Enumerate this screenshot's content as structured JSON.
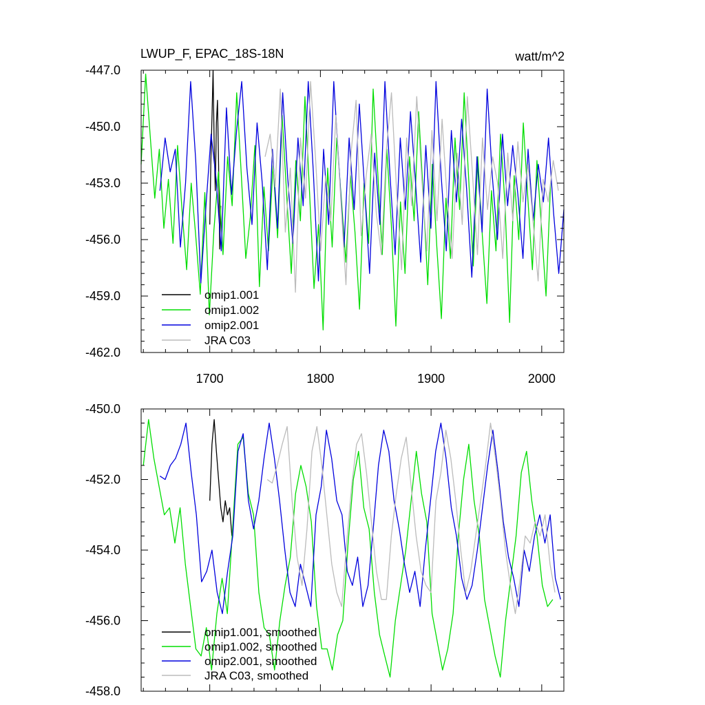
{
  "figure": {
    "title_left": "LWUP_F, EPAC_18S-18N",
    "title_right": "watt/m^2"
  },
  "colors": {
    "omip1_001": "#000000",
    "omip1_002": "#00dd00",
    "omip2_001": "#0000dd",
    "jra": "#bbbbbb",
    "frame": "#000000"
  },
  "chart_data": [
    {
      "type": "line",
      "panel": "top",
      "xlim": [
        1638,
        2020
      ],
      "ylim": [
        -462,
        -447
      ],
      "xticks": [
        1700,
        1800,
        1900,
        2000
      ],
      "x_tick_labels": [
        "1700",
        "1800",
        "1900",
        "2000"
      ],
      "yticks": [
        -462,
        -459,
        -456,
        -453,
        -450,
        -447
      ],
      "y_tick_labels": [
        "-462.0",
        "-459.0",
        "-456.0",
        "-453.0",
        "-450.0",
        "-447.0"
      ],
      "legend": [
        "omip1.001",
        "omip1.002",
        "omip2.001",
        "JRA C03"
      ],
      "series": [
        {
          "name": "omip1.001",
          "color_key": "omip1_001",
          "x_start": 1700,
          "x_end": 1710,
          "values": [
            -455.2,
            -451.8,
            -449.5,
            -447.0,
            -451.0,
            -453.4,
            -449.8,
            -448.6,
            -452.0,
            -456.5,
            -454.2
          ]
        },
        {
          "name": "omip1.002",
          "color_key": "omip1_002",
          "x_start": 1638,
          "x_end": 2008,
          "values": [
            -452.0,
            -447.2,
            -450.5,
            -453.8,
            -451.2,
            -455.4,
            -452.8,
            -456.2,
            -451.0,
            -454.5,
            -457.6,
            -453.0,
            -455.8,
            -458.9,
            -453.5,
            -460.0,
            -455.5,
            -452.4,
            -456.8,
            -451.6,
            -454.2,
            -448.2,
            -452.5,
            -457.0,
            -454.8,
            -451.0,
            -458.5,
            -453.2,
            -456.6,
            -452.0,
            -455.9,
            -449.4,
            -453.7,
            -457.8,
            -451.8,
            -455.0,
            -448.4,
            -453.4,
            -458.6,
            -455.2,
            -460.8,
            -452.2,
            -456.4,
            -450.6,
            -453.8,
            -457.2,
            -452.6,
            -455.6,
            -459.7,
            -453.0,
            -456.2,
            -448.0,
            -452.4,
            -456.8,
            -451.2,
            -455.2,
            -460.6,
            -454.0,
            -457.8,
            -451.6,
            -455.0,
            -449.2,
            -453.6,
            -458.4,
            -452.0,
            -456.4,
            -460.2,
            -453.8,
            -457.0,
            -450.6,
            -454.4,
            -448.2,
            -452.8,
            -457.4,
            -451.6,
            -455.8,
            -459.4,
            -453.4,
            -456.6,
            -450.4,
            -454.2,
            -460.4,
            -452.6,
            -456.0,
            -449.8,
            -453.8,
            -457.6,
            -451.8,
            -455.4,
            -459.0,
            -453.0
          ]
        },
        {
          "name": "omip2.001",
          "color_key": "omip2_001",
          "x_start": 1655,
          "x_end": 2020,
          "values": [
            -453.4,
            -450.6,
            -452.4,
            -451.2,
            -456.4,
            -453.0,
            -447.6,
            -451.8,
            -458.3,
            -454.2,
            -450.4,
            -452.8,
            -456.6,
            -449.0,
            -453.6,
            -450.2,
            -447.6,
            -452.2,
            -455.2,
            -449.8,
            -453.0,
            -457.6,
            -451.2,
            -455.4,
            -448.2,
            -452.8,
            -456.2,
            -450.6,
            -454.2,
            -447.6,
            -452.4,
            -458.2,
            -451.2,
            -455.2,
            -447.6,
            -452.0,
            -456.4,
            -450.6,
            -454.4,
            -448.8,
            -453.2,
            -457.8,
            -451.4,
            -455.2,
            -447.6,
            -452.6,
            -456.8,
            -450.6,
            -454.4,
            -449.2,
            -453.0,
            -457.2,
            -451.0,
            -455.4,
            -447.6,
            -452.6,
            -456.6,
            -450.2,
            -454.0,
            -449.6,
            -453.4,
            -458.0,
            -451.6,
            -455.6,
            -448.0,
            -452.6,
            -456.0,
            -450.4,
            -454.2,
            -451.0,
            -453.6,
            -457.0,
            -451.2,
            -455.0,
            -452.0,
            -454.0,
            -450.6,
            -454.6,
            -457.8,
            -454.4
          ]
        },
        {
          "name": "JRA C03",
          "color_key": "jra",
          "x_start": 1750,
          "x_end": 2015,
          "values": [
            -451.6,
            -450.4,
            -453.2,
            -448.0,
            -455.6,
            -452.2,
            -458.8,
            -450.6,
            -453.8,
            -447.6,
            -451.8,
            -456.6,
            -452.6,
            -455.0,
            -449.4,
            -454.0,
            -458.4,
            -451.4,
            -448.6,
            -455.8,
            -452.6,
            -450.4,
            -454.6,
            -456.8,
            -451.2,
            -448.2,
            -453.4,
            -457.6,
            -450.6,
            -454.2,
            -448.4,
            -452.8,
            -456.6,
            -450.2,
            -455.0,
            -449.6,
            -453.8,
            -457.0,
            -451.4,
            -455.2,
            -448.4,
            -452.4,
            -456.8,
            -450.6,
            -454.4,
            -451.6,
            -453.0,
            -457.0,
            -451.4,
            -455.0,
            -450.8,
            -454.0,
            -452.0,
            -455.0,
            -458.2,
            -452.8,
            -454.0,
            -451.8,
            -453.4
          ]
        }
      ]
    },
    {
      "type": "line",
      "panel": "bottom",
      "xlim": [
        1638,
        2020
      ],
      "ylim": [
        -458,
        -450
      ],
      "xticks": [
        1700,
        1800,
        1900,
        2000
      ],
      "yticks": [
        -458,
        -456,
        -454,
        -452,
        -450
      ],
      "y_tick_labels": [
        "-458.0",
        "-456.0",
        "-454.0",
        "-452.0",
        "-450.0"
      ],
      "legend": [
        "omip1.001, smoothed",
        "omip1.002, smoothed",
        "omip2.001, smoothed",
        "JRA C03, smoothed"
      ],
      "series": [
        {
          "name": "omip1.001, smoothed",
          "color_key": "omip1_001",
          "x_start": 1700,
          "x_end": 1720,
          "values": [
            -452.6,
            -451.0,
            -450.3,
            -451.2,
            -452.0,
            -452.8,
            -453.2,
            -452.6,
            -453.0,
            -452.8,
            -453.6
          ]
        },
        {
          "name": "omip1.002, smoothed",
          "color_key": "omip1_002",
          "x_start": 1640,
          "x_end": 2010,
          "values": [
            -451.6,
            -450.3,
            -451.4,
            -452.2,
            -453.0,
            -452.8,
            -453.8,
            -452.8,
            -454.4,
            -455.6,
            -456.8,
            -457.0,
            -456.2,
            -457.4,
            -455.8,
            -454.8,
            -455.8,
            -453.4,
            -451.0,
            -450.8,
            -452.4,
            -453.0,
            -455.2,
            -456.2,
            -456.4,
            -457.4,
            -456.0,
            -455.0,
            -454.2,
            -452.4,
            -451.6,
            -452.2,
            -453.2,
            -455.6,
            -456.8,
            -456.8,
            -457.4,
            -456.4,
            -456.0,
            -453.8,
            -452.0,
            -451.2,
            -452.8,
            -453.4,
            -455.2,
            -456.4,
            -457.0,
            -457.6,
            -456.0,
            -455.0,
            -454.0,
            -452.6,
            -451.2,
            -452.4,
            -453.2,
            -455.8,
            -456.6,
            -457.4,
            -456.8,
            -455.8,
            -453.6,
            -452.0,
            -451.0,
            -452.6,
            -453.6,
            -455.4,
            -456.2,
            -457.0,
            -457.6,
            -456.0,
            -454.8,
            -453.6,
            -451.8,
            -451.2,
            -452.6,
            -453.6,
            -455.0,
            -455.6,
            -455.4
          ]
        },
        {
          "name": "omip2.001, smoothed",
          "color_key": "omip2_001",
          "x_start": 1655,
          "x_end": 2017,
          "values": [
            -451.9,
            -452.0,
            -451.6,
            -451.4,
            -451.0,
            -450.4,
            -451.8,
            -453.0,
            -454.9,
            -454.6,
            -454.0,
            -455.2,
            -455.8,
            -454.6,
            -453.6,
            -451.2,
            -450.7,
            -452.6,
            -453.4,
            -452.6,
            -451.4,
            -450.4,
            -451.4,
            -452.6,
            -454.0,
            -455.2,
            -455.6,
            -454.4,
            -455.0,
            -455.6,
            -453.0,
            -452.2,
            -450.6,
            -451.4,
            -452.6,
            -453.0,
            -454.6,
            -455.0,
            -454.2,
            -455.6,
            -455.0,
            -453.4,
            -451.6,
            -450.6,
            -451.2,
            -452.6,
            -453.4,
            -454.4,
            -455.2,
            -454.6,
            -455.6,
            -454.0,
            -452.6,
            -451.2,
            -450.4,
            -451.4,
            -452.8,
            -453.6,
            -454.8,
            -455.4,
            -455.0,
            -454.0,
            -452.8,
            -451.6,
            -450.6,
            -451.8,
            -453.2,
            -454.2,
            -454.8,
            -455.6,
            -454.0,
            -454.6,
            -453.6,
            -453.0,
            -453.8,
            -453.0,
            -454.8,
            -455.4
          ]
        },
        {
          "name": "JRA C03, smoothed",
          "color_key": "jra",
          "x_start": 1752,
          "x_end": 2012,
          "values": [
            -452.0,
            -452.1,
            -451.6,
            -451.0,
            -450.5,
            -452.6,
            -454.2,
            -455.0,
            -453.4,
            -451.2,
            -450.5,
            -451.6,
            -453.0,
            -454.4,
            -455.2,
            -455.6,
            -453.8,
            -452.2,
            -451.0,
            -450.7,
            -451.8,
            -453.2,
            -454.6,
            -455.4,
            -455.4,
            -453.6,
            -452.4,
            -451.4,
            -450.8,
            -452.2,
            -453.6,
            -454.6,
            -455.0,
            -455.2,
            -452.6,
            -451.8,
            -450.6,
            -451.4,
            -452.6,
            -454.0,
            -455.2,
            -454.6,
            -453.6,
            -452.6,
            -451.6,
            -450.4,
            -451.4,
            -452.6,
            -454.0,
            -455.0,
            -455.8,
            -454.8,
            -453.6,
            -453.8,
            -453.2,
            -453.6,
            -453.0,
            -454.4,
            -455.2
          ]
        }
      ]
    }
  ]
}
